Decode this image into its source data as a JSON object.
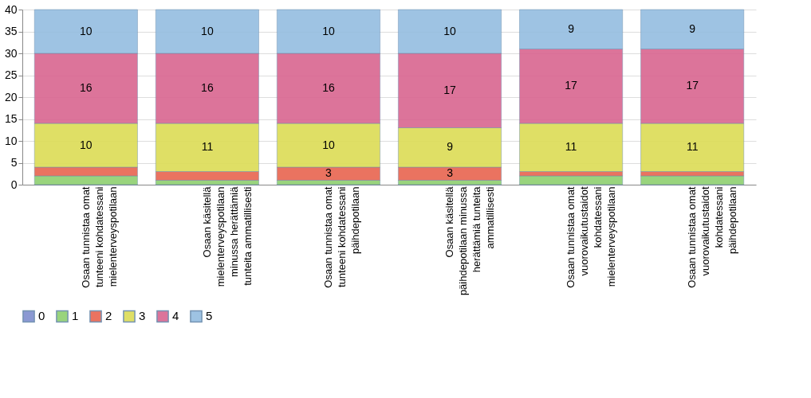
{
  "chart_data": {
    "type": "bar",
    "stacked": true,
    "categories": [
      "Osaan tunnistaa omat tunteeni kohdatessani mielenterveyspotilaan",
      "Osaan käsitellä mielenterveyspotilaan minussa herättämiä tunteita ammatillisesti",
      "Osaan tunnistaa omat tunteeni kohdatessani  päihdepotilaan",
      "Osaan käsitellä päihdepotilaan minussa herättämiä tunteita ammatillisesti",
      "Osaan tunnistaa omat vuorovaikutustaidot kohdatessani mielenterveyspotilaan",
      "Osaan  tunnistaa omat vuorovaikutustaidot kohdatessani päihdepotilaan"
    ],
    "series": [
      {
        "name": "0",
        "color": "#7f8fcf",
        "values": [
          0,
          0,
          0,
          0,
          0,
          0
        ]
      },
      {
        "name": "1",
        "color": "#8fd070",
        "values": [
          2,
          1,
          1,
          1,
          2,
          2
        ]
      },
      {
        "name": "2",
        "color": "#e8644f",
        "values": [
          2,
          2,
          3,
          3,
          1,
          1
        ],
        "value_labels": [
          null,
          null,
          "3",
          "3",
          null,
          null
        ]
      },
      {
        "name": "3",
        "color": "#dcdc55",
        "values": [
          10,
          11,
          10,
          9,
          11,
          11
        ],
        "value_labels": [
          "10",
          "11",
          "10",
          "9",
          "11",
          "11"
        ]
      },
      {
        "name": "4",
        "color": "#d96590",
        "values": [
          16,
          16,
          16,
          17,
          17,
          17
        ],
        "value_labels": [
          "16",
          "16",
          "16",
          "17",
          "17",
          "17"
        ]
      },
      {
        "name": "5",
        "color": "#94bde0",
        "values": [
          10,
          10,
          10,
          10,
          9,
          9
        ],
        "value_labels": [
          "10",
          "10",
          "10",
          "10",
          "9",
          "9"
        ]
      }
    ],
    "ylim": [
      0,
      40
    ],
    "yticks": [
      0,
      5,
      10,
      15,
      20,
      25,
      30,
      35,
      40
    ],
    "grid": "y",
    "legend": "bottom"
  }
}
